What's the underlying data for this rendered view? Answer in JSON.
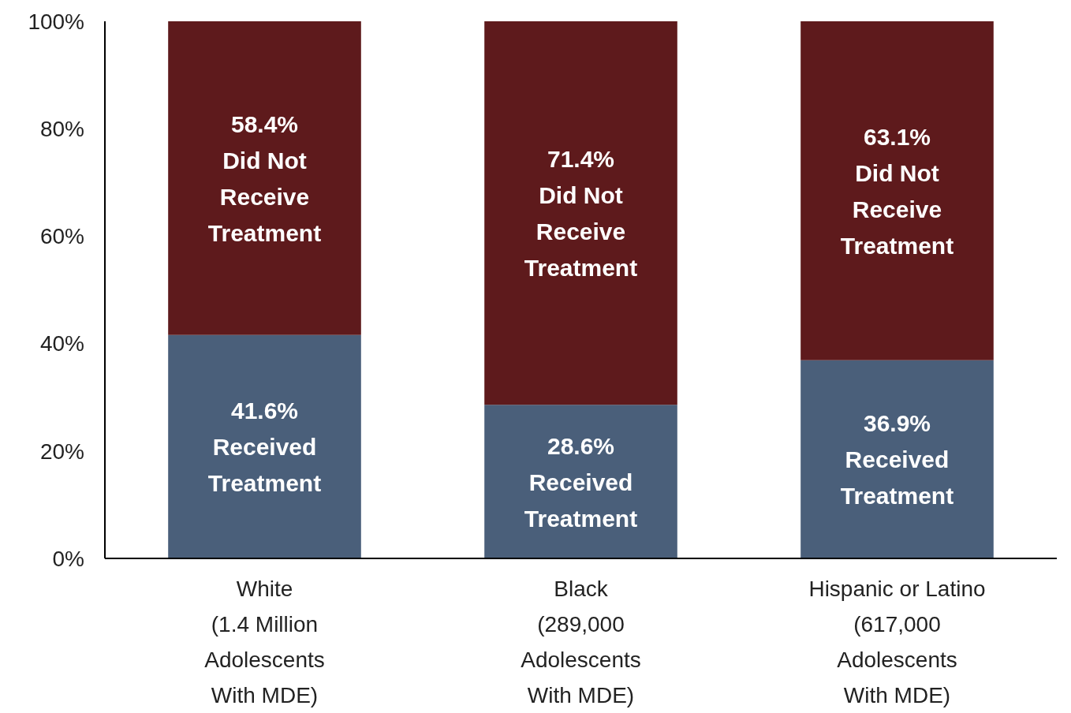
{
  "chart_data": {
    "type": "bar",
    "stacked": true,
    "categories": [
      "White\n(1.4 Million\nAdolescents\nWith MDE)",
      "Black\n(289,000\nAdolescents\nWith MDE)",
      "Hispanic or Latino\n(617,000\nAdolescents\nWith MDE)"
    ],
    "series": [
      {
        "name": "Received Treatment",
        "color": "#4a5f7a",
        "values": [
          41.6,
          28.6,
          36.9
        ],
        "value_labels": [
          "41.6%",
          "28.6%",
          "36.9%"
        ]
      },
      {
        "name": "Did Not Receive Treatment",
        "color": "#5e1a1c",
        "values": [
          58.4,
          71.4,
          63.1
        ],
        "value_labels": [
          "58.4%",
          "71.4%",
          "63.1%"
        ]
      }
    ],
    "ylim": [
      0,
      100
    ],
    "yticks": [
      {
        "value": 0,
        "label": "0%"
      },
      {
        "value": 20,
        "label": "20%"
      },
      {
        "value": 40,
        "label": "40%"
      },
      {
        "value": 60,
        "label": "60%"
      },
      {
        "value": 80,
        "label": "80%"
      },
      {
        "value": 100,
        "label": "100%"
      }
    ],
    "grid": false
  }
}
